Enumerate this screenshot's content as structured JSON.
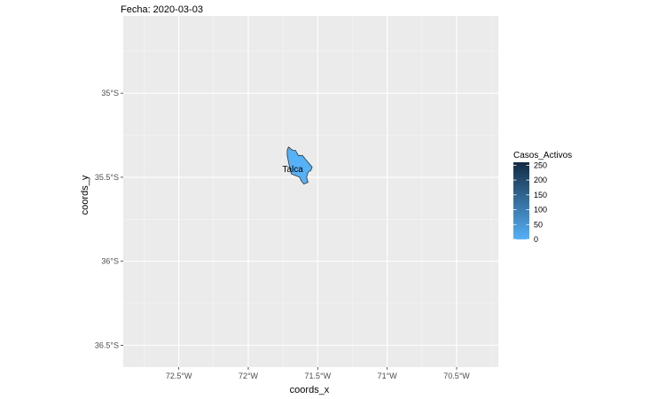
{
  "chart_data": {
    "type": "map",
    "title": "Fecha: 2020-03-03",
    "xlabel": "coords_x",
    "ylabel": "coords_y",
    "xlim": [
      -72.9,
      -70.2
    ],
    "ylim": [
      -36.63,
      -34.54
    ],
    "x_ticks": [
      {
        "value": -72.5,
        "label": "72.5°W"
      },
      {
        "value": -72.0,
        "label": "72°W"
      },
      {
        "value": -71.5,
        "label": "71.5°W"
      },
      {
        "value": -71.0,
        "label": "71°W"
      },
      {
        "value": -70.5,
        "label": "70.5°W"
      }
    ],
    "y_ticks": [
      {
        "value": -35.0,
        "label": "35°S"
      },
      {
        "value": -35.5,
        "label": "35.5°S"
      },
      {
        "value": -36.0,
        "label": "36°S"
      },
      {
        "value": -36.5,
        "label": "36.5°S"
      }
    ],
    "grid": true,
    "legend": {
      "title": "Casos_Activos",
      "placement": "right",
      "min": 0,
      "max": 260,
      "labels": [
        0,
        50,
        100,
        150,
        200,
        250
      ],
      "color_low": "#56B1F7",
      "color_high": "#132B43"
    },
    "regions": [
      {
        "name": "Talca",
        "value": 0,
        "label_lon": -71.68,
        "label_lat": -35.47,
        "boundary": [
          [
            -71.71,
            -35.32
          ],
          [
            -71.68,
            -35.34
          ],
          [
            -71.66,
            -35.34
          ],
          [
            -71.64,
            -35.37
          ],
          [
            -71.61,
            -35.37
          ],
          [
            -71.59,
            -35.39
          ],
          [
            -71.56,
            -35.42
          ],
          [
            -71.54,
            -35.44
          ],
          [
            -71.55,
            -35.46
          ],
          [
            -71.57,
            -35.47
          ],
          [
            -71.58,
            -35.5
          ],
          [
            -71.57,
            -35.53
          ],
          [
            -71.6,
            -35.54
          ],
          [
            -71.62,
            -35.52
          ],
          [
            -71.63,
            -35.5
          ],
          [
            -71.66,
            -35.49
          ],
          [
            -71.69,
            -35.48
          ],
          [
            -71.7,
            -35.45
          ],
          [
            -71.71,
            -35.41
          ],
          [
            -71.72,
            -35.37
          ],
          [
            -71.72,
            -35.34
          ]
        ]
      }
    ]
  }
}
